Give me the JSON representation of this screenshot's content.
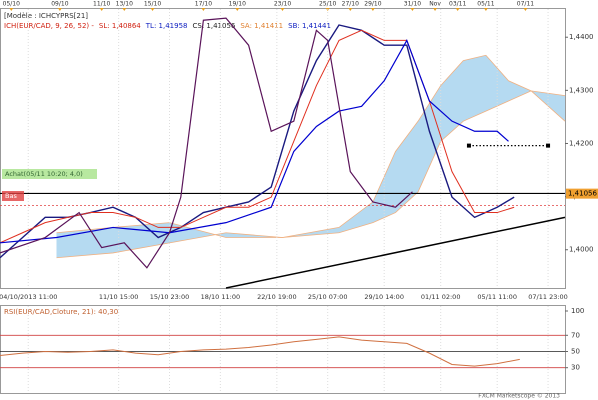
{
  "header": {
    "model": "[Modèle : ICHCYPRS[21]",
    "indicator": [
      {
        "text": "ICH(EUR/CAD, 9, 26, 52) -",
        "color": "#d02010"
      },
      {
        "text": "SL: 1,40864",
        "color": "#d02010"
      },
      {
        "text": "TL: 1,41958",
        "color": "#1020c0"
      },
      {
        "text": "CS: 1,41056",
        "color": "#222222"
      },
      {
        "text": "SA: 1,41411",
        "color": "#e08030"
      },
      {
        "text": "SB: 1,41441",
        "color": "#1020c0"
      }
    ]
  },
  "footer": "FXCM Marketscope © 2013",
  "chart_data": [
    {
      "type": "line",
      "xlim": [
        0,
        100
      ],
      "ylim": [
        1.3928,
        1.4455
      ],
      "yticks": [
        {
          "value": 1.4,
          "label": "1,4000"
        },
        {
          "value": 1.41,
          "label": "1,4100"
        },
        {
          "value": 1.42,
          "label": "1,4200"
        },
        {
          "value": 1.43,
          "label": "1,4300"
        },
        {
          "value": 1.44,
          "label": "1,4400"
        }
      ],
      "xticks": [
        {
          "value": 5,
          "label": "04/10/2013 11:00"
        },
        {
          "value": 21,
          "label": "11/10 15:00"
        },
        {
          "value": 30,
          "label": "15/10 23:00"
        },
        {
          "value": 39,
          "label": "18/10 11:00"
        },
        {
          "value": 49,
          "label": "22/10 19:00"
        },
        {
          "value": 58,
          "label": "25/10 07:00"
        },
        {
          "value": 68,
          "label": "29/10 14:00"
        },
        {
          "value": 78,
          "label": "01/11 02:00"
        },
        {
          "value": 88,
          "label": "05/11 11:00"
        },
        {
          "value": 97,
          "label": "07/11 23:00"
        }
      ],
      "x2ticks": [
        {
          "value": 2,
          "label": "05/10"
        },
        {
          "value": 10.6,
          "label": "09/10"
        },
        {
          "value": 18,
          "label": "11/10"
        },
        {
          "value": 22,
          "label": "13/10"
        },
        {
          "value": 27,
          "label": "15/10"
        },
        {
          "value": 36,
          "label": "17/10"
        },
        {
          "value": 42,
          "label": "19/10"
        },
        {
          "value": 50,
          "label": "23/10"
        },
        {
          "value": 58,
          "label": "25/10"
        },
        {
          "value": 62,
          "label": "27/10"
        },
        {
          "value": 66,
          "label": "29/10"
        },
        {
          "value": 73,
          "label": "31/10"
        },
        {
          "value": 77,
          "label": "Nov"
        },
        {
          "value": 81,
          "label": "03/11"
        },
        {
          "value": 86,
          "label": "05/11"
        },
        {
          "value": 93,
          "label": "07/11"
        }
      ],
      "grid": true,
      "cloud": {
        "color": "#a8d4ee",
        "edge_color": "#f0b080",
        "x": [
          10,
          20,
          30,
          40,
          50,
          60,
          66,
          70,
          74,
          78,
          82,
          86,
          90,
          94,
          100
        ],
        "span_a": [
          1.3985,
          1.3994,
          1.4013,
          1.4032,
          1.4023,
          1.4042,
          1.409,
          1.4185,
          1.4242,
          1.4309,
          1.4356,
          1.4366,
          1.4318,
          1.4299,
          1.4242
        ],
        "span_b": [
          1.4032,
          1.4042,
          1.4051,
          1.4023,
          1.4023,
          1.4032,
          1.4051,
          1.407,
          1.4109,
          1.4204,
          1.4242,
          1.4261,
          1.428,
          1.4299,
          1.429
        ]
      },
      "series": [
        {
          "color": "#1a1a80",
          "width": 1.4,
          "x": [
            0,
            4,
            8,
            12,
            16,
            20,
            24,
            28,
            32,
            36,
            40,
            44,
            48,
            52,
            56,
            60,
            64,
            68,
            72,
            76,
            80,
            84,
            88,
            91
          ],
          "values": [
            1.3985,
            1.4023,
            1.4061,
            1.4061,
            1.407,
            1.408,
            1.4061,
            1.4023,
            1.4042,
            1.407,
            1.408,
            1.409,
            1.4118,
            1.4261,
            1.4356,
            1.4423,
            1.4413,
            1.4385,
            1.4385,
            1.4223,
            1.4099,
            1.4061,
            1.408,
            1.4099
          ]
        },
        {
          "color": "#e03020",
          "width": 1,
          "x": [
            0,
            4,
            8,
            12,
            16,
            20,
            24,
            28,
            32,
            36,
            40,
            44,
            48,
            52,
            56,
            60,
            64,
            68,
            72,
            76,
            80,
            84,
            88,
            91
          ],
          "values": [
            1.4013,
            1.4032,
            1.4051,
            1.4061,
            1.407,
            1.407,
            1.4061,
            1.4042,
            1.4042,
            1.4061,
            1.408,
            1.408,
            1.4099,
            1.4204,
            1.4309,
            1.4394,
            1.4413,
            1.4394,
            1.4394,
            1.428,
            1.4147,
            1.407,
            1.407,
            1.408
          ]
        },
        {
          "color": "#0000d0",
          "width": 1.2,
          "x": [
            0,
            10,
            20,
            30,
            40,
            48,
            52,
            56,
            60,
            64,
            68,
            72,
            76,
            80,
            84,
            88,
            90
          ],
          "values": [
            1.4013,
            1.4023,
            1.4042,
            1.4032,
            1.4051,
            1.408,
            1.4185,
            1.4232,
            1.4261,
            1.427,
            1.4318,
            1.4394,
            1.428,
            1.4242,
            1.4223,
            1.4223,
            1.4204
          ]
        },
        {
          "color": "#5a145a",
          "width": 1.2,
          "x": [
            0,
            8,
            14,
            18,
            22,
            26,
            30,
            32,
            36,
            40,
            44,
            48,
            52,
            56,
            58,
            62,
            66,
            70,
            73
          ],
          "values": [
            1.3994,
            1.4023,
            1.407,
            1.4004,
            1.4013,
            1.3966,
            1.4032,
            1.4099,
            1.4432,
            1.4436,
            1.4385,
            1.4223,
            1.4242,
            1.4413,
            1.4394,
            1.4147,
            1.409,
            1.408,
            1.4109
          ]
        }
      ],
      "hlines": [
        {
          "value": 1.4106,
          "color": "#000000"
        },
        {
          "value": 1.4083,
          "color": "#e04040"
        }
      ],
      "trendline": {
        "x": [
          40,
          100
        ],
        "y": [
          1.3928,
          1.4061
        ],
        "color": "#000000"
      },
      "target": {
        "x": [
          83,
          97
        ],
        "y": [
          1.4196,
          1.4196
        ],
        "color": "#000000"
      },
      "annotations": [
        {
          "text": "Achat(05/11 10:20; 4,0)",
          "color": "#b8e8a0"
        },
        {
          "text": "Bas",
          "color": "#e04040"
        }
      ],
      "price_label": {
        "value": 1.41056,
        "label": "1,41056"
      }
    },
    {
      "type": "line",
      "title": "RSI(EUR/CAD,Cloture, 21): 40,30",
      "ylim": [
        0,
        100
      ],
      "yticks": [
        30,
        50,
        70,
        100
      ],
      "xlim": [
        0,
        100
      ],
      "levels": [
        {
          "value": 70,
          "color": "#d04040"
        },
        {
          "value": 50,
          "color": "#222222"
        },
        {
          "value": 30,
          "color": "#d04040"
        }
      ],
      "series": [
        {
          "color": "#d07040",
          "width": 1,
          "x": [
            0,
            4,
            8,
            12,
            16,
            20,
            24,
            28,
            32,
            36,
            40,
            44,
            48,
            52,
            56,
            60,
            64,
            68,
            72,
            76,
            80,
            84,
            88,
            92
          ],
          "values": [
            45,
            48,
            50,
            49,
            50,
            52,
            48,
            46,
            50,
            52,
            53,
            55,
            58,
            62,
            65,
            68,
            64,
            62,
            60,
            48,
            34,
            32,
            35,
            40.3
          ]
        }
      ]
    }
  ]
}
